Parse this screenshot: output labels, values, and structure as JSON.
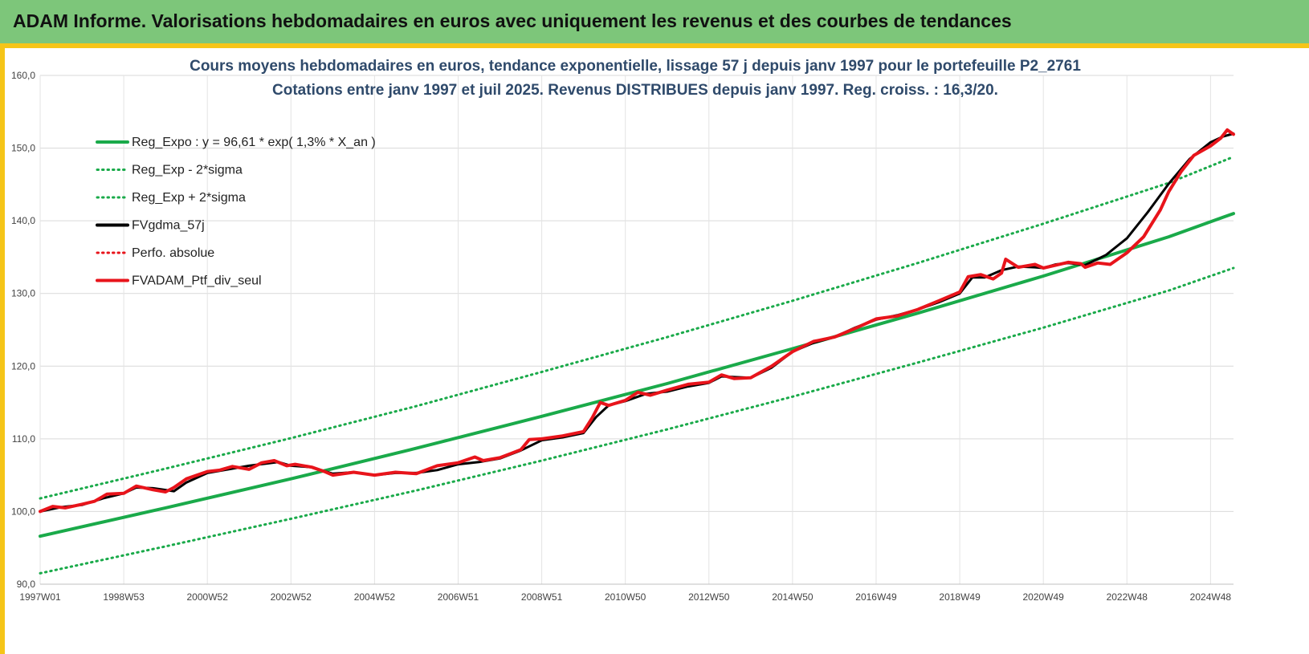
{
  "header": {
    "title": "ADAM Informe. Valorisations hebdomadaires en euros avec uniquement les revenus et des courbes de tendances"
  },
  "colors": {
    "regression": "#1aaa4a",
    "smoothed": "#000000",
    "portfolio": "#e8141b",
    "header_bg": "#7dc67a",
    "frame": "#f5c518"
  },
  "chart_data": {
    "type": "line",
    "title": [
      "Cours moyens hebdomadaires  en euros, tendance exponentielle, lissage 57 j depuis janv 1997 pour le portefeuille P2_2761",
      "Cotations  entre janv 1997 et juil 2025. Revenus DISTRIBUES depuis janv 1997. Reg. croiss. : 16,3/20."
    ],
    "xlabel": "",
    "ylabel": "",
    "ylim": [
      90,
      160
    ],
    "xlim": [
      1997.0,
      2025.55
    ],
    "y_ticks": [
      "90,0",
      "100,0",
      "110,0",
      "120,0",
      "130,0",
      "140,0",
      "150,0",
      "160,0"
    ],
    "y_tick_values": [
      90,
      100,
      110,
      120,
      130,
      140,
      150,
      160
    ],
    "x_tick_labels": [
      "1997W01",
      "1998W53",
      "2000W52",
      "2002W52",
      "2004W52",
      "2006W51",
      "2008W51",
      "2010W50",
      "2012W50",
      "2014W50",
      "2016W49",
      "2018W49",
      "2020W49",
      "2022W48",
      "2024W48"
    ],
    "x_tick_values": [
      1997.0,
      1999.0,
      2001.0,
      2003.0,
      2005.0,
      2007.0,
      2009.0,
      2011.0,
      2013.0,
      2015.0,
      2017.0,
      2019.0,
      2021.0,
      2023.0,
      2025.0
    ],
    "grid": true,
    "legend_position": "top-left",
    "series": [
      {
        "name": "Reg_Expo : y = 96,61 * exp( 1,3% *  X_an )",
        "style": "solid",
        "color": "#1aaa4a",
        "width": 4,
        "x": [
          1997.0,
          2000.0,
          2003.0,
          2006.0,
          2009.0,
          2012.0,
          2015.0,
          2018.0,
          2021.0,
          2024.0,
          2025.55
        ],
        "y": [
          96.6,
          100.5,
          104.5,
          108.7,
          113.1,
          117.6,
          122.4,
          127.3,
          132.4,
          137.8,
          141.0
        ]
      },
      {
        "name": "Reg_Exp - 2*sigma",
        "style": "dotted",
        "color": "#1aaa4a",
        "width": 3,
        "x": [
          1997.0,
          2000.0,
          2003.0,
          2006.0,
          2009.0,
          2012.0,
          2015.0,
          2018.0,
          2021.0,
          2024.0,
          2025.55
        ],
        "y": [
          91.5,
          95.2,
          99.0,
          102.9,
          107.0,
          111.3,
          115.8,
          120.5,
          125.3,
          130.4,
          133.5
        ]
      },
      {
        "name": "Reg_Exp + 2*sigma",
        "style": "dotted",
        "color": "#1aaa4a",
        "width": 3,
        "x": [
          1997.0,
          2000.0,
          2003.0,
          2006.0,
          2009.0,
          2012.0,
          2015.0,
          2018.0,
          2021.0,
          2024.0,
          2025.55
        ],
        "y": [
          101.8,
          105.9,
          110.1,
          114.5,
          119.2,
          124.0,
          129.0,
          134.2,
          139.6,
          145.2,
          148.8
        ]
      },
      {
        "name": "FVgdma_57j",
        "style": "solid",
        "color": "#000000",
        "width": 3,
        "x": [
          1997.0,
          1997.5,
          1998.0,
          1998.5,
          1999.0,
          1999.3,
          1999.7,
          2000.2,
          2000.5,
          2001.0,
          2001.5,
          2002.0,
          2002.4,
          2002.7,
          2003.0,
          2003.5,
          2004.0,
          2004.5,
          2005.0,
          2005.5,
          2006.0,
          2006.5,
          2007.0,
          2007.5,
          2008.0,
          2008.5,
          2009.0,
          2009.5,
          2010.0,
          2010.3,
          2010.6,
          2011.0,
          2011.5,
          2012.0,
          2012.5,
          2013.0,
          2013.3,
          2013.6,
          2014.0,
          2014.5,
          2015.0,
          2015.5,
          2016.0,
          2016.5,
          2017.0,
          2017.5,
          2018.0,
          2018.5,
          2019.0,
          2019.3,
          2019.6,
          2020.0,
          2020.4,
          2020.8,
          2021.0,
          2021.3,
          2021.6,
          2022.0,
          2022.5,
          2023.0,
          2023.5,
          2024.0,
          2024.5,
          2025.0,
          2025.3,
          2025.55
        ],
        "y": [
          100.0,
          100.6,
          100.9,
          101.8,
          102.5,
          103.3,
          103.2,
          102.8,
          104.0,
          105.3,
          105.8,
          106.3,
          106.6,
          106.8,
          106.3,
          106.1,
          105.2,
          105.4,
          105.0,
          105.3,
          105.3,
          105.7,
          106.5,
          106.8,
          107.3,
          108.4,
          109.8,
          110.2,
          110.8,
          113.0,
          114.6,
          115.2,
          116.2,
          116.5,
          117.2,
          117.7,
          118.6,
          118.5,
          118.4,
          119.8,
          122.0,
          123.2,
          124.0,
          125.3,
          126.4,
          127.0,
          127.8,
          128.8,
          130.0,
          132.2,
          132.2,
          133.2,
          133.7,
          133.6,
          133.5,
          134.0,
          134.2,
          133.9,
          135.3,
          137.6,
          141.2,
          145.1,
          148.5,
          150.8,
          151.6,
          152.0
        ]
      },
      {
        "name": "Perfo. absolue",
        "style": "dotted",
        "color": "#e8141b",
        "width": 2,
        "x": [],
        "y": []
      },
      {
        "name": "FVADAM_Ptf_div_seul",
        "style": "solid",
        "color": "#e8141b",
        "width": 4,
        "x": [
          1997.0,
          1997.3,
          1997.6,
          1998.0,
          1998.3,
          1998.6,
          1999.0,
          1999.3,
          1999.7,
          2000.0,
          2000.2,
          2000.5,
          2001.0,
          2001.3,
          2001.6,
          2002.0,
          2002.3,
          2002.6,
          2002.9,
          2003.1,
          2003.5,
          2003.8,
          2004.0,
          2004.5,
          2005.0,
          2005.5,
          2006.0,
          2006.5,
          2007.0,
          2007.4,
          2007.6,
          2008.0,
          2008.5,
          2008.7,
          2009.0,
          2009.5,
          2010.0,
          2010.2,
          2010.4,
          2010.6,
          2011.0,
          2011.3,
          2011.6,
          2012.0,
          2012.5,
          2013.0,
          2013.3,
          2013.6,
          2014.0,
          2014.5,
          2015.0,
          2015.5,
          2016.0,
          2016.5,
          2017.0,
          2017.5,
          2018.0,
          2018.5,
          2019.0,
          2019.2,
          2019.5,
          2019.8,
          2020.0,
          2020.1,
          2020.4,
          2020.8,
          2021.0,
          2021.3,
          2021.6,
          2021.9,
          2022.0,
          2022.3,
          2022.6,
          2023.0,
          2023.4,
          2023.8,
          2024.0,
          2024.3,
          2024.6,
          2025.0,
          2025.25,
          2025.4,
          2025.55
        ],
        "y": [
          100.0,
          100.7,
          100.5,
          101.0,
          101.4,
          102.4,
          102.5,
          103.5,
          103.0,
          102.7,
          103.3,
          104.5,
          105.5,
          105.7,
          106.2,
          105.8,
          106.7,
          107.0,
          106.3,
          106.5,
          106.1,
          105.5,
          105.0,
          105.4,
          105.0,
          105.4,
          105.2,
          106.3,
          106.7,
          107.5,
          107.0,
          107.4,
          108.5,
          109.9,
          110.0,
          110.4,
          111.0,
          112.8,
          115.0,
          114.6,
          115.3,
          116.4,
          116.0,
          116.7,
          117.5,
          117.8,
          118.8,
          118.3,
          118.4,
          120.0,
          122.0,
          123.4,
          124.0,
          125.2,
          126.5,
          126.9,
          127.8,
          129.0,
          130.2,
          132.3,
          132.6,
          132.0,
          132.8,
          134.7,
          133.6,
          134.0,
          133.5,
          133.9,
          134.3,
          134.1,
          133.6,
          134.2,
          134.0,
          135.6,
          137.8,
          141.5,
          144.0,
          146.8,
          149.0,
          150.3,
          151.4,
          152.5,
          151.9
        ]
      }
    ]
  }
}
